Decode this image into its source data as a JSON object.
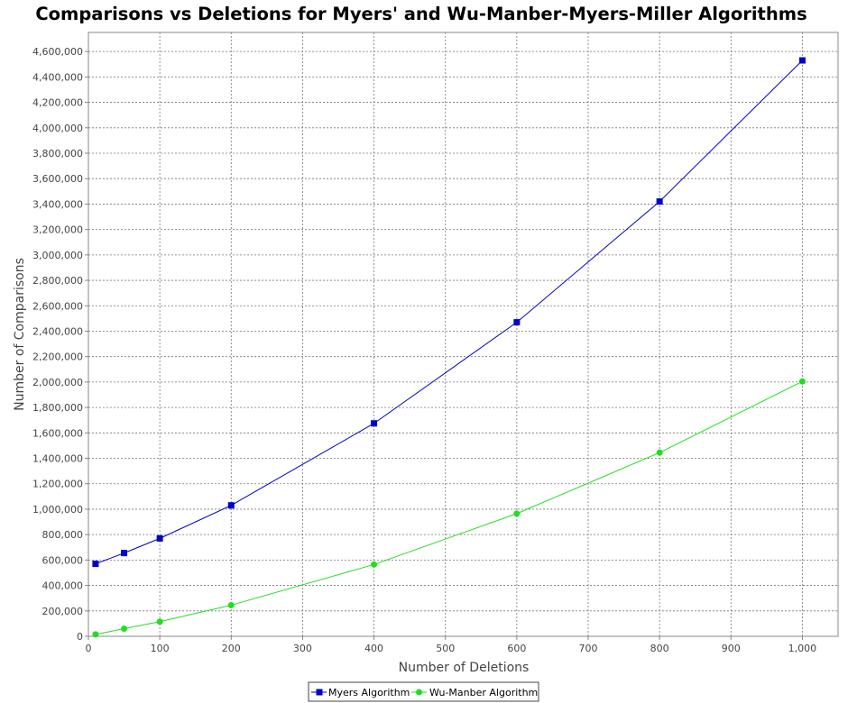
{
  "chart_data": {
    "type": "line",
    "title": "Comparisons vs Deletions for Myers' and Wu-Manber-Myers-Miller Algorithms",
    "xlabel": "Number of Deletions",
    "ylabel": "Number of Comparisons",
    "xlim": [
      0,
      1050
    ],
    "ylim": [
      0,
      4750000
    ],
    "xticks": [
      0,
      100,
      200,
      300,
      400,
      500,
      600,
      700,
      800,
      900,
      1000
    ],
    "xtick_labels": [
      "0",
      "100",
      "200",
      "300",
      "400",
      "500",
      "600",
      "700",
      "800",
      "900",
      "1,000"
    ],
    "yticks": [
      0,
      200000,
      400000,
      600000,
      800000,
      1000000,
      1200000,
      1400000,
      1600000,
      1800000,
      2000000,
      2200000,
      2400000,
      2600000,
      2800000,
      3000000,
      3200000,
      3400000,
      3600000,
      3800000,
      4000000,
      4200000,
      4400000,
      4600000
    ],
    "ytick_labels": [
      "0",
      "200,000",
      "400,000",
      "600,000",
      "800,000",
      "1,000,000",
      "1,200,000",
      "1,400,000",
      "1,600,000",
      "1,800,000",
      "2,000,000",
      "2,200,000",
      "2,400,000",
      "2,600,000",
      "2,800,000",
      "3,000,000",
      "3,200,000",
      "3,400,000",
      "3,600,000",
      "3,800,000",
      "4,000,000",
      "4,200,000",
      "4,400,000",
      "4,600,000"
    ],
    "grid": true,
    "legend_position": "bottom",
    "series": [
      {
        "name": "Myers Algorithm",
        "color": "#0000cc",
        "marker": "square",
        "x": [
          10,
          50,
          100,
          200,
          400,
          600,
          800,
          1000
        ],
        "y": [
          570000,
          655000,
          770000,
          1030000,
          1675000,
          2470000,
          3420000,
          4530000
        ]
      },
      {
        "name": "Wu-Manber Algorithm",
        "color": "#22dd22",
        "marker": "circle",
        "x": [
          10,
          50,
          100,
          200,
          400,
          600,
          800,
          1000
        ],
        "y": [
          15000,
          60000,
          115000,
          245000,
          565000,
          965000,
          1445000,
          2005000
        ]
      }
    ]
  }
}
